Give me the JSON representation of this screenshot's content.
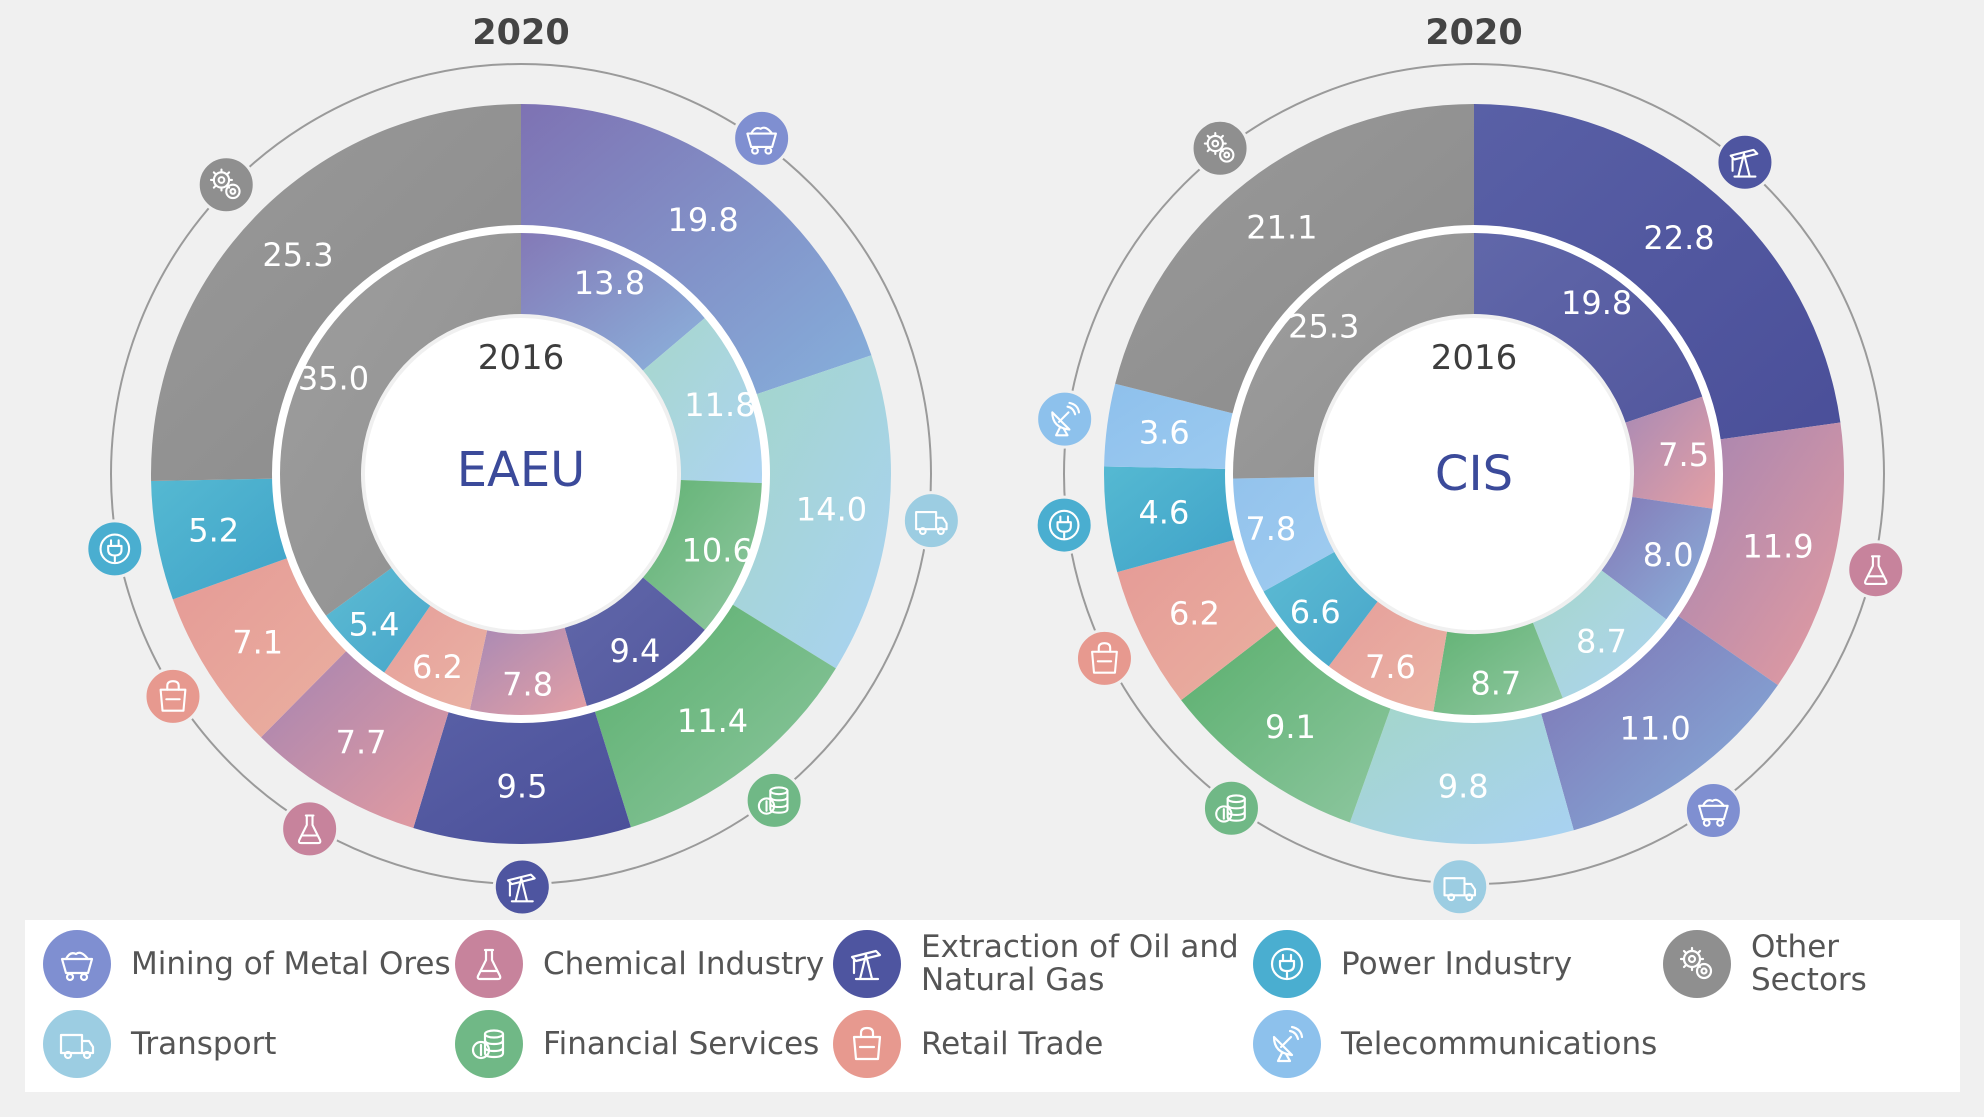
{
  "sectors": [
    {
      "id": "mining",
      "name": "Mining of Metal Ores",
      "icon": "mine-cart-icon",
      "color": "#7f8fd1",
      "gradient": [
        "#7e72b3",
        "#86b0dc"
      ]
    },
    {
      "id": "chemical",
      "name": "Chemical Industry",
      "icon": "flask-icon",
      "color": "#c7839c",
      "gradient": [
        "#a484b2",
        "#e59ca0"
      ]
    },
    {
      "id": "oilgas",
      "name": "Extraction of Oil and\nNatural Gas",
      "icon": "oil-pump-icon",
      "color": "#4e55a0",
      "gradient": [
        "#5960a6",
        "#4a4f99"
      ]
    },
    {
      "id": "power",
      "name": "Power Industry",
      "icon": "power-plug-icon",
      "color": "#4aaed0",
      "gradient": [
        "#55b9d2",
        "#3fa2c8"
      ]
    },
    {
      "id": "other",
      "name": "Other Sectors",
      "icon": "gears-icon",
      "color": "#8f8f8f",
      "gradient": [
        "#9a9a9a",
        "#8a8a8a"
      ]
    },
    {
      "id": "transport",
      "name": "Transport",
      "icon": "truck-icon",
      "color": "#9ccde2",
      "gradient": [
        "#a3d6c9",
        "#a9d2f3"
      ]
    },
    {
      "id": "financial",
      "name": "Financial Services",
      "icon": "coins-icon",
      "color": "#70b886",
      "gradient": [
        "#5aaf6d",
        "#8ec7a0"
      ]
    },
    {
      "id": "retail",
      "name": "Retail Trade",
      "icon": "shopping-bag-icon",
      "color": "#e7998f",
      "gradient": [
        "#e59a96",
        "#eab0a0"
      ]
    },
    {
      "id": "telecom",
      "name": "Telecommunications",
      "icon": "satellite-dish-icon",
      "color": "#8dc1ec",
      "gradient": [
        "#8ec0ec",
        "#9bcaf0"
      ]
    }
  ],
  "chart_data": [
    {
      "type": "donut",
      "title": "EAEU",
      "outer_label": "2020",
      "inner_label": "2016",
      "series": [
        {
          "name": "2020",
          "values": {
            "mining": 19.8,
            "transport": 14.0,
            "financial": 11.4,
            "oilgas": 9.5,
            "chemical": 7.7,
            "retail": 7.1,
            "power": 5.2,
            "other": 25.3
          }
        },
        {
          "name": "2016",
          "values": {
            "mining": 13.8,
            "transport": 11.8,
            "financial": 10.6,
            "oilgas": 9.4,
            "chemical": 7.8,
            "retail": 6.2,
            "power": 5.4,
            "other": 35.0
          }
        }
      ],
      "order": [
        "mining",
        "transport",
        "financial",
        "oilgas",
        "chemical",
        "retail",
        "power",
        "other"
      ]
    },
    {
      "type": "donut",
      "title": "CIS",
      "outer_label": "2020",
      "inner_label": "2016",
      "series": [
        {
          "name": "2020",
          "values": {
            "oilgas": 22.8,
            "chemical": 11.9,
            "mining": 11.0,
            "transport": 9.8,
            "financial": 9.1,
            "retail": 6.2,
            "power": 4.6,
            "telecom": 3.6,
            "other": 21.1
          }
        },
        {
          "name": "2016",
          "values": {
            "oilgas": 19.8,
            "chemical": 7.5,
            "mining": 8.0,
            "transport": 8.7,
            "financial": 8.7,
            "retail": 7.6,
            "power": 6.6,
            "telecom": 7.8,
            "other": 25.3
          }
        }
      ],
      "order": [
        "oilgas",
        "chemical",
        "mining",
        "transport",
        "financial",
        "retail",
        "power",
        "telecom",
        "other"
      ]
    }
  ],
  "legend": [
    [
      "mining",
      "chemical",
      "oilgas",
      "power",
      "other"
    ],
    [
      "transport",
      "financial",
      "retail",
      "telecom"
    ]
  ]
}
